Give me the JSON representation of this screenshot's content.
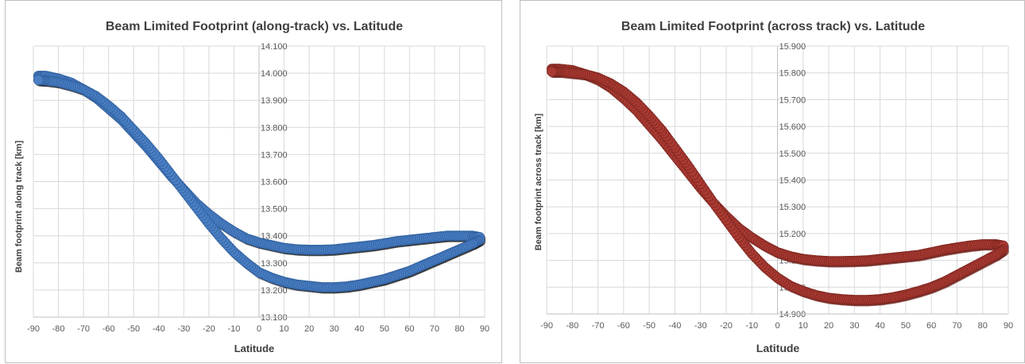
{
  "chart_data": [
    {
      "type": "scatter",
      "title": "Beam Limited Footprint (along-track) vs. Latitude",
      "xlabel": "Latitude",
      "ylabel": "Beam footprint along track [km]",
      "xlim": [
        -90,
        90
      ],
      "ylim": [
        13.1,
        14.1
      ],
      "x_ticks": [
        -90,
        -80,
        -70,
        -60,
        -50,
        -40,
        -30,
        -20,
        -10,
        0,
        10,
        20,
        30,
        40,
        50,
        60,
        70,
        80,
        90
      ],
      "y_ticks": [
        13.1,
        13.2,
        13.3,
        13.4,
        13.5,
        13.6,
        13.7,
        13.8,
        13.9,
        14.0,
        14.1
      ],
      "y_tick_labels": [
        "13.100",
        "13.200",
        "13.300",
        "13.400",
        "13.500",
        "13.600",
        "13.700",
        "13.800",
        "13.900",
        "14.000",
        "14.100"
      ],
      "y_axis_crosses_x": 0,
      "grid": true,
      "marker_color": "#4a7fc4",
      "marker_edge_color": "#2f5f9e",
      "shadow_color": "#1a1a1a",
      "series": [
        {
          "x": [
            -88,
            -85,
            -80,
            -75,
            -70,
            -65,
            -60,
            -55,
            -50,
            -45,
            -40,
            -35,
            -30,
            -25,
            -20,
            -15,
            -10,
            -5,
            0,
            5,
            10,
            15,
            20,
            25,
            30,
            35,
            40,
            45,
            50,
            55,
            60,
            65,
            70,
            75,
            80,
            85,
            88
          ],
          "y": [
            13.99,
            13.99,
            13.98,
            13.965,
            13.94,
            13.91,
            13.87,
            13.83,
            13.78,
            13.73,
            13.675,
            13.62,
            13.57,
            13.52,
            13.48,
            13.445,
            13.415,
            13.39,
            13.375,
            13.365,
            13.355,
            13.35,
            13.348,
            13.348,
            13.35,
            13.355,
            13.36,
            13.365,
            13.372,
            13.38,
            13.385,
            13.39,
            13.395,
            13.4,
            13.4,
            13.4,
            13.395
          ]
        },
        {
          "x": [
            88,
            85,
            80,
            75,
            70,
            65,
            60,
            55,
            50,
            45,
            40,
            35,
            30,
            25,
            20,
            15,
            10,
            5,
            0,
            -5,
            -10,
            -15,
            -20,
            -25,
            -30,
            -35,
            -40,
            -45,
            -50,
            -55,
            -60,
            -65,
            -70,
            -75,
            -80,
            -85,
            -88
          ],
          "y": [
            13.385,
            13.37,
            13.35,
            13.33,
            13.31,
            13.29,
            13.27,
            13.255,
            13.24,
            13.23,
            13.22,
            13.213,
            13.21,
            13.21,
            13.215,
            13.22,
            13.23,
            13.245,
            13.265,
            13.3,
            13.34,
            13.39,
            13.445,
            13.505,
            13.565,
            13.625,
            13.685,
            13.74,
            13.79,
            13.84,
            13.88,
            13.915,
            13.94,
            13.955,
            13.967,
            13.973,
            13.975
          ]
        }
      ]
    },
    {
      "type": "scatter",
      "title": "Beam Limited Footprint (across track) vs. Latitude",
      "xlabel": "Latitude",
      "ylabel": "Beam footprint across track [km]",
      "xlim": [
        -90,
        90
      ],
      "ylim": [
        14.9,
        15.9
      ],
      "x_ticks": [
        -90,
        -80,
        -70,
        -60,
        -50,
        -40,
        -30,
        -20,
        -10,
        0,
        10,
        20,
        30,
        40,
        50,
        60,
        70,
        80,
        90
      ],
      "y_ticks": [
        14.9,
        15.0,
        15.1,
        15.2,
        15.3,
        15.4,
        15.5,
        15.6,
        15.7,
        15.8,
        15.9
      ],
      "y_tick_labels": [
        "14.900",
        "15.000",
        "15.100",
        "15.200",
        "15.300",
        "15.400",
        "15.500",
        "15.600",
        "15.700",
        "15.800",
        "15.900"
      ],
      "y_axis_crosses_x": 0,
      "grid": true,
      "marker_color": "#a93a32",
      "marker_edge_color": "#7e2620",
      "shadow_color": "#6b1d18",
      "series": [
        {
          "x": [
            -88,
            -85,
            -80,
            -75,
            -70,
            -65,
            -60,
            -55,
            -50,
            -45,
            -40,
            -35,
            -30,
            -25,
            -20,
            -15,
            -10,
            -5,
            0,
            5,
            10,
            15,
            20,
            25,
            30,
            35,
            40,
            45,
            50,
            55,
            60,
            65,
            70,
            75,
            80,
            85,
            88
          ],
          "y": [
            15.815,
            15.815,
            15.81,
            15.795,
            15.775,
            15.745,
            15.705,
            15.66,
            15.605,
            15.55,
            15.49,
            15.43,
            15.37,
            15.315,
            15.265,
            15.22,
            15.185,
            15.155,
            15.13,
            15.115,
            15.105,
            15.1,
            15.097,
            15.097,
            15.098,
            15.1,
            15.105,
            15.11,
            15.115,
            15.12,
            15.13,
            15.14,
            15.148,
            15.155,
            15.16,
            15.16,
            15.155
          ]
        },
        {
          "x": [
            88,
            85,
            80,
            75,
            70,
            65,
            60,
            55,
            50,
            45,
            40,
            35,
            30,
            25,
            20,
            15,
            10,
            5,
            0,
            -5,
            -10,
            -15,
            -20,
            -25,
            -30,
            -35,
            -40,
            -45,
            -50,
            -55,
            -60,
            -65,
            -70,
            -75,
            -80,
            -85,
            -88
          ],
          "y": [
            15.14,
            15.12,
            15.095,
            15.07,
            15.045,
            15.02,
            15.0,
            14.985,
            14.972,
            14.962,
            14.955,
            14.952,
            14.952,
            14.955,
            14.96,
            14.97,
            14.985,
            15.005,
            15.035,
            15.075,
            15.125,
            15.185,
            15.25,
            15.315,
            15.385,
            15.455,
            15.52,
            15.585,
            15.64,
            15.69,
            15.73,
            15.76,
            15.782,
            15.795,
            15.8,
            15.805,
            15.805
          ]
        }
      ]
    }
  ]
}
